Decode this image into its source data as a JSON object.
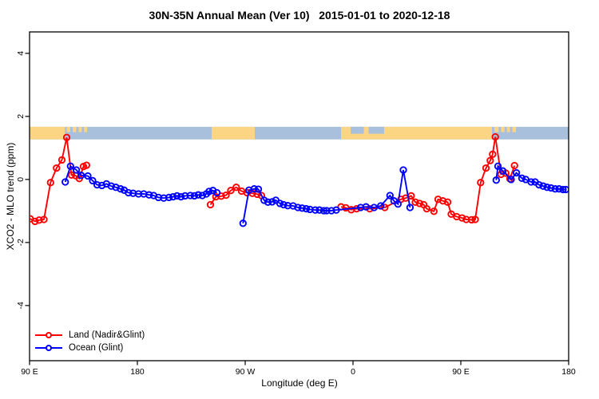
{
  "chart_data": {
    "type": "line",
    "title": "30N-35N Annual Mean (Ver 10)   2015-01-01 to 2020-12-18",
    "xlabel": "Longitude (deg E)",
    "ylabel": "XCO2 - MLO trend (ppm)",
    "xlim": [
      90,
      540
    ],
    "ylim": [
      -5.75,
      4.68
    ],
    "grid": false,
    "x_ticks": [
      {
        "lon": 90,
        "label": "90 E"
      },
      {
        "lon": 180,
        "label": "180"
      },
      {
        "lon": 270,
        "label": "90 W"
      },
      {
        "lon": 360,
        "label": "0"
      },
      {
        "lon": 450,
        "label": "90 E"
      },
      {
        "lon": 540,
        "label": "180"
      }
    ],
    "y_ticks": [
      {
        "v": -4,
        "label": "-4"
      },
      {
        "v": -2,
        "label": "-2"
      },
      {
        "v": 0,
        "label": "0"
      },
      {
        "v": 2,
        "label": "2"
      },
      {
        "v": 4,
        "label": "4"
      }
    ],
    "map_band": {
      "description": "world-map strip of the 30N-35N latitude band drawn across the plot",
      "v_top": 1.67,
      "v_bottom": 1.27,
      "ocean_color": "#a9c0dc",
      "land_color": "#fbd583",
      "land_segments": [
        [
          90,
          119.5
        ],
        [
          242,
          278
        ],
        [
          350,
          476
        ]
      ],
      "island_specks": [
        [
          121,
          124
        ],
        [
          126,
          129
        ],
        [
          131,
          133.5
        ],
        [
          135.5,
          138
        ],
        [
          478,
          481.5
        ],
        [
          483.5,
          486.5
        ],
        [
          488.5,
          491
        ],
        [
          493,
          496
        ]
      ],
      "sea_patches": [
        [
          358,
          369
        ],
        [
          373,
          386
        ]
      ]
    },
    "legend": {
      "position": "bottom-left",
      "frame": false,
      "entries": [
        {
          "label": "Land (Nadir&Glint)",
          "color": "#ff0000",
          "marker": "open-circle"
        },
        {
          "label": "Ocean (Glint)",
          "color": "#0000ff",
          "marker": "open-circle"
        }
      ]
    },
    "series": [
      {
        "name": "Land (Nadir&Glint)",
        "color": "#ff0000",
        "segments": [
          [
            [
              90.5,
              -1.25
            ],
            [
              94.5,
              -1.33
            ],
            [
              98,
              -1.29
            ],
            [
              102,
              -1.27
            ],
            [
              107.5,
              -0.1
            ],
            [
              112.5,
              0.36
            ],
            [
              117,
              0.62
            ],
            [
              121,
              1.33
            ],
            [
              125,
              0.14
            ],
            [
              128.5,
              0.12
            ],
            [
              131.5,
              0.03
            ],
            [
              135,
              0.41
            ],
            [
              137.5,
              0.45
            ]
          ],
          [
            [
              241,
              -0.8
            ],
            [
              245.5,
              -0.55
            ],
            [
              250,
              -0.53
            ],
            [
              254,
              -0.5
            ],
            [
              258,
              -0.35
            ],
            [
              262.5,
              -0.25
            ],
            [
              267,
              -0.37
            ],
            [
              271.5,
              -0.42
            ],
            [
              276,
              -0.44
            ],
            [
              280,
              -0.47
            ],
            [
              283.5,
              -0.51
            ]
          ],
          [
            [
              350,
              -0.87
            ],
            [
              354,
              -0.9
            ],
            [
              358.5,
              -0.96
            ],
            [
              363,
              -0.93
            ],
            [
              374,
              -0.93
            ],
            [
              386.5,
              -0.89
            ],
            [
              400,
              -0.63
            ],
            [
              404,
              -0.59
            ],
            [
              408.5,
              -0.52
            ],
            [
              412,
              -0.72
            ],
            [
              415.5,
              -0.76
            ],
            [
              419,
              -0.8
            ],
            [
              421.5,
              -0.93
            ],
            [
              427.5,
              -1.01
            ],
            [
              431,
              -0.63
            ],
            [
              435,
              -0.68
            ],
            [
              439,
              -0.72
            ],
            [
              442,
              -1.1
            ],
            [
              446.5,
              -1.18
            ],
            [
              451,
              -1.22
            ],
            [
              454.5,
              -1.27
            ],
            [
              459,
              -1.28
            ],
            [
              462,
              -1.27
            ],
            [
              466.5,
              -0.1
            ],
            [
              471,
              0.36
            ],
            [
              474.5,
              0.6
            ],
            [
              476.5,
              0.8
            ],
            [
              478.8,
              1.35
            ],
            [
              483.5,
              0.16
            ],
            [
              487.5,
              0.2
            ],
            [
              491,
              0.02
            ],
            [
              494.8,
              0.44
            ]
          ]
        ]
      },
      {
        "name": "Ocean (Glint)",
        "color": "#0000ff",
        "segments": [
          [
            [
              119.8,
              -0.08
            ],
            [
              124.2,
              0.42
            ],
            [
              129.1,
              0.3
            ],
            [
              133.1,
              0.13
            ],
            [
              138.7,
              0.11
            ],
            [
              142.7,
              -0.04
            ],
            [
              146.4,
              -0.17
            ],
            [
              150.4,
              -0.19
            ],
            [
              154.2,
              -0.14
            ],
            [
              158.2,
              -0.21
            ],
            [
              162,
              -0.25
            ],
            [
              166,
              -0.3
            ],
            [
              169,
              -0.34
            ],
            [
              172.5,
              -0.42
            ],
            [
              176.4,
              -0.44
            ],
            [
              180.9,
              -0.46
            ],
            [
              185.3,
              -0.46
            ],
            [
              189.8,
              -0.49
            ],
            [
              193.6,
              -0.51
            ],
            [
              197.6,
              -0.57
            ],
            [
              202,
              -0.59
            ],
            [
              206.4,
              -0.57
            ],
            [
              209.8,
              -0.55
            ],
            [
              213.1,
              -0.52
            ],
            [
              216.4,
              -0.55
            ],
            [
              219.8,
              -0.52
            ],
            [
              224.2,
              -0.51
            ],
            [
              227.6,
              -0.52
            ],
            [
              230.9,
              -0.49
            ],
            [
              234.2,
              -0.51
            ],
            [
              237.6,
              -0.46
            ],
            [
              239.8,
              -0.38
            ],
            [
              243.1,
              -0.35
            ],
            [
              246.4,
              -0.42
            ]
          ],
          [
            [
              268.2,
              -1.39
            ],
            [
              273.1,
              -0.34
            ],
            [
              277.5,
              -0.3
            ],
            [
              281,
              -0.31
            ],
            [
              285.8,
              -0.66
            ],
            [
              289,
              -0.72
            ],
            [
              292.5,
              -0.71
            ],
            [
              295.5,
              -0.66
            ],
            [
              299,
              -0.76
            ],
            [
              302,
              -0.8
            ],
            [
              305.5,
              -0.83
            ],
            [
              310,
              -0.84
            ],
            [
              314,
              -0.89
            ],
            [
              317.5,
              -0.91
            ],
            [
              321,
              -0.93
            ],
            [
              324,
              -0.95
            ],
            [
              328.5,
              -0.97
            ],
            [
              332,
              -0.97
            ],
            [
              335.5,
              -0.99
            ],
            [
              338,
              -0.99
            ],
            [
              342,
              -0.99
            ],
            [
              346,
              -0.97
            ],
            [
              366.4,
              -0.89
            ],
            [
              370.9,
              -0.87
            ],
            [
              377.6,
              -0.89
            ],
            [
              383.1,
              -0.84
            ],
            [
              390.9,
              -0.51
            ],
            [
              394.2,
              -0.68
            ],
            [
              397.5,
              -0.78
            ],
            [
              402,
              0.3
            ],
            [
              407.6,
              -0.89
            ]
          ],
          [
            [
              479.5,
              -0.02
            ],
            [
              481,
              0.42
            ],
            [
              485,
              0.27
            ],
            [
              492,
              0.0
            ],
            [
              496.4,
              0.21
            ],
            [
              500.9,
              0.04
            ],
            [
              504.2,
              0.0
            ],
            [
              508.7,
              -0.08
            ],
            [
              512,
              -0.08
            ],
            [
              515.3,
              -0.17
            ],
            [
              518.7,
              -0.21
            ],
            [
              522,
              -0.25
            ],
            [
              525.3,
              -0.27
            ],
            [
              528.7,
              -0.3
            ],
            [
              532,
              -0.3
            ],
            [
              535.3,
              -0.32
            ],
            [
              537.6,
              -0.32
            ]
          ]
        ]
      }
    ]
  }
}
